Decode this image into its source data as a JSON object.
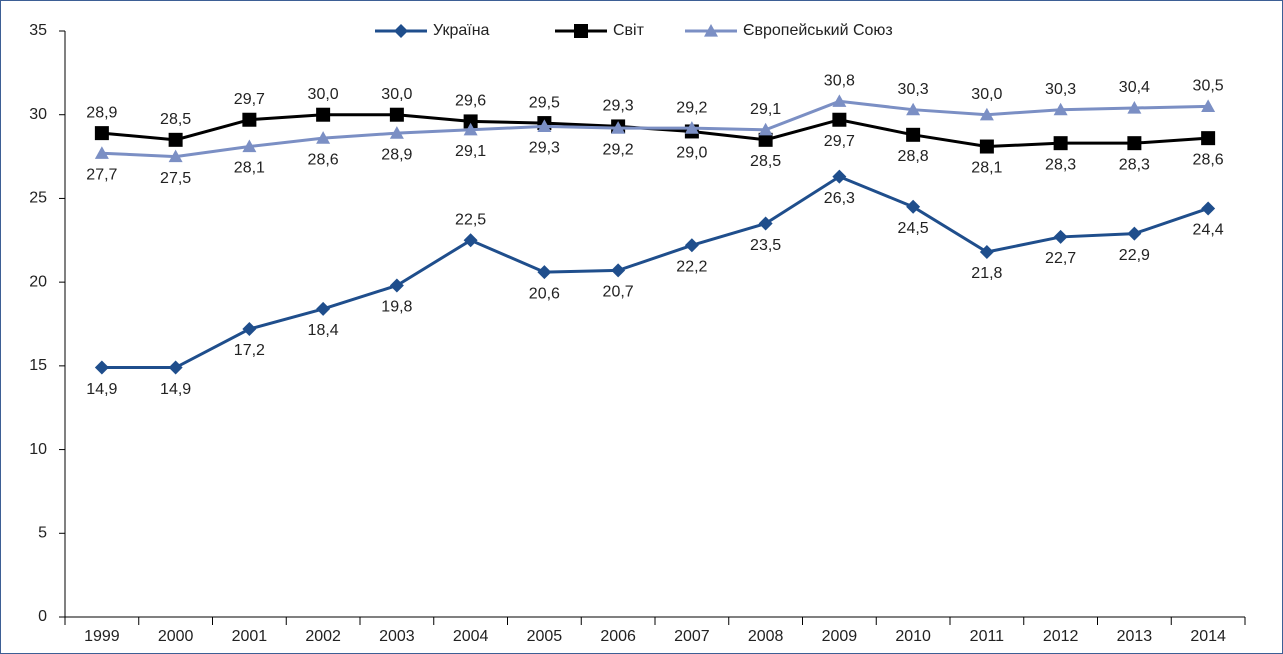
{
  "chart_data": {
    "type": "line",
    "categories": [
      "1999",
      "2000",
      "2001",
      "2002",
      "2003",
      "2004",
      "2005",
      "2006",
      "2007",
      "2008",
      "2009",
      "2010",
      "2011",
      "2012",
      "2013",
      "2014"
    ],
    "series": [
      {
        "name": "Україна",
        "color": "#1f4e8c",
        "marker": "diamond",
        "values": [
          14.9,
          14.9,
          17.2,
          18.4,
          19.8,
          22.5,
          20.6,
          20.7,
          22.2,
          23.5,
          26.3,
          24.5,
          21.8,
          22.7,
          22.9,
          24.4
        ],
        "value_labels": [
          "14,9",
          "14,9",
          "17,2",
          "18,4",
          "19,8",
          "22,5",
          "20,6",
          "20,7",
          "22,2",
          "23,5",
          "26,3",
          "24,5",
          "21,8",
          "22,7",
          "22,9",
          "24,4"
        ]
      },
      {
        "name": "Світ",
        "color": "#000000",
        "marker": "square",
        "values": [
          28.9,
          28.5,
          29.7,
          30.0,
          30.0,
          29.6,
          29.5,
          29.3,
          29.0,
          28.5,
          29.7,
          28.8,
          28.1,
          28.3,
          28.3,
          28.6
        ],
        "value_labels": [
          "28,9",
          "28,5",
          "29,7",
          "30,0",
          "30,0",
          "29,6",
          "29,5",
          "29,3",
          "29,0",
          "28,5",
          "29,7",
          "28,8",
          "28,1",
          "28,3",
          "28,3",
          "28,6"
        ]
      },
      {
        "name": "Європейський Союз",
        "color": "#7b8fc4",
        "marker": "triangle",
        "values": [
          27.7,
          27.5,
          28.1,
          28.6,
          28.9,
          29.1,
          29.3,
          29.2,
          29.2,
          29.1,
          30.8,
          30.3,
          30.0,
          30.3,
          30.4,
          30.5
        ],
        "value_labels": [
          "27,7",
          "27,5",
          "28,1",
          "28,6",
          "28,9",
          "29,1",
          "29,3",
          "29,2",
          "29,2",
          "29,1",
          "30,8",
          "30,3",
          "30,0",
          "30,3",
          "30,4",
          "30,5"
        ]
      }
    ],
    "ylim": [
      0,
      35
    ],
    "yticks": [
      0,
      5,
      10,
      15,
      20,
      25,
      30,
      35
    ],
    "legend": "top"
  }
}
